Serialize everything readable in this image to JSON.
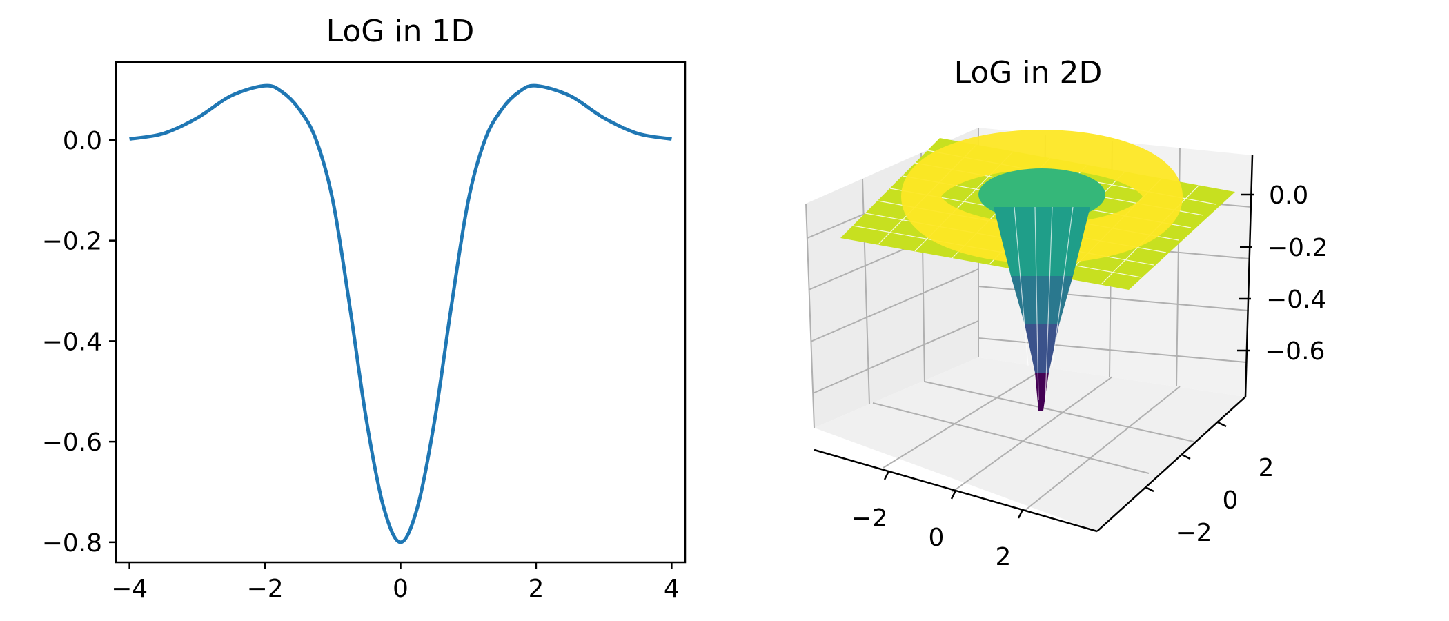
{
  "chart_data": [
    {
      "type": "line",
      "title": "LoG in 1D",
      "xlabel": "",
      "ylabel": "",
      "xlim": [
        -4.2,
        4.2
      ],
      "ylim": [
        -0.84,
        0.155
      ],
      "xticks": [
        -4,
        -2,
        0,
        2,
        4
      ],
      "xtick_labels": [
        "−4",
        "−2",
        "0",
        "2",
        "4"
      ],
      "yticks": [
        0.0,
        -0.2,
        -0.4,
        -0.6,
        -0.8
      ],
      "ytick_labels": [
        "0.0",
        "−0.2",
        "−0.4",
        "−0.6",
        "−0.8"
      ],
      "grid": false,
      "series": [
        {
          "color": "#1f77b4",
          "x": [
            -4.0,
            -3.5,
            -3.0,
            -2.5,
            -2.0,
            -1.75,
            -1.5,
            -1.25,
            -1.0,
            -0.75,
            -0.5,
            -0.25,
            0.0,
            0.25,
            0.5,
            0.75,
            1.0,
            1.25,
            1.5,
            1.75,
            2.0,
            2.5,
            3.0,
            3.5,
            4.0
          ],
          "y": [
            0.002,
            0.013,
            0.044,
            0.088,
            0.108,
            0.096,
            0.062,
            0.002,
            -0.12,
            -0.33,
            -0.56,
            -0.73,
            -0.8,
            -0.73,
            -0.56,
            -0.33,
            -0.12,
            0.002,
            0.062,
            0.096,
            0.108,
            0.088,
            0.044,
            0.013,
            0.002
          ]
        }
      ]
    },
    {
      "type": "surface",
      "title": "LoG in 2D",
      "x_range": [
        -4,
        4
      ],
      "y_range": [
        -4,
        4
      ],
      "xticks": [
        "−2",
        "0",
        "2"
      ],
      "yticks": [
        "2",
        "0",
        "−2"
      ],
      "zticks": [
        "0.0",
        "−0.2",
        "−0.4",
        "−0.6"
      ],
      "z_range": [
        -0.8,
        0.1
      ],
      "colormap": "viridis",
      "colors": {
        "low": "#440154",
        "mid": "#21918c",
        "high": "#fde725"
      },
      "grid": true
    }
  ]
}
